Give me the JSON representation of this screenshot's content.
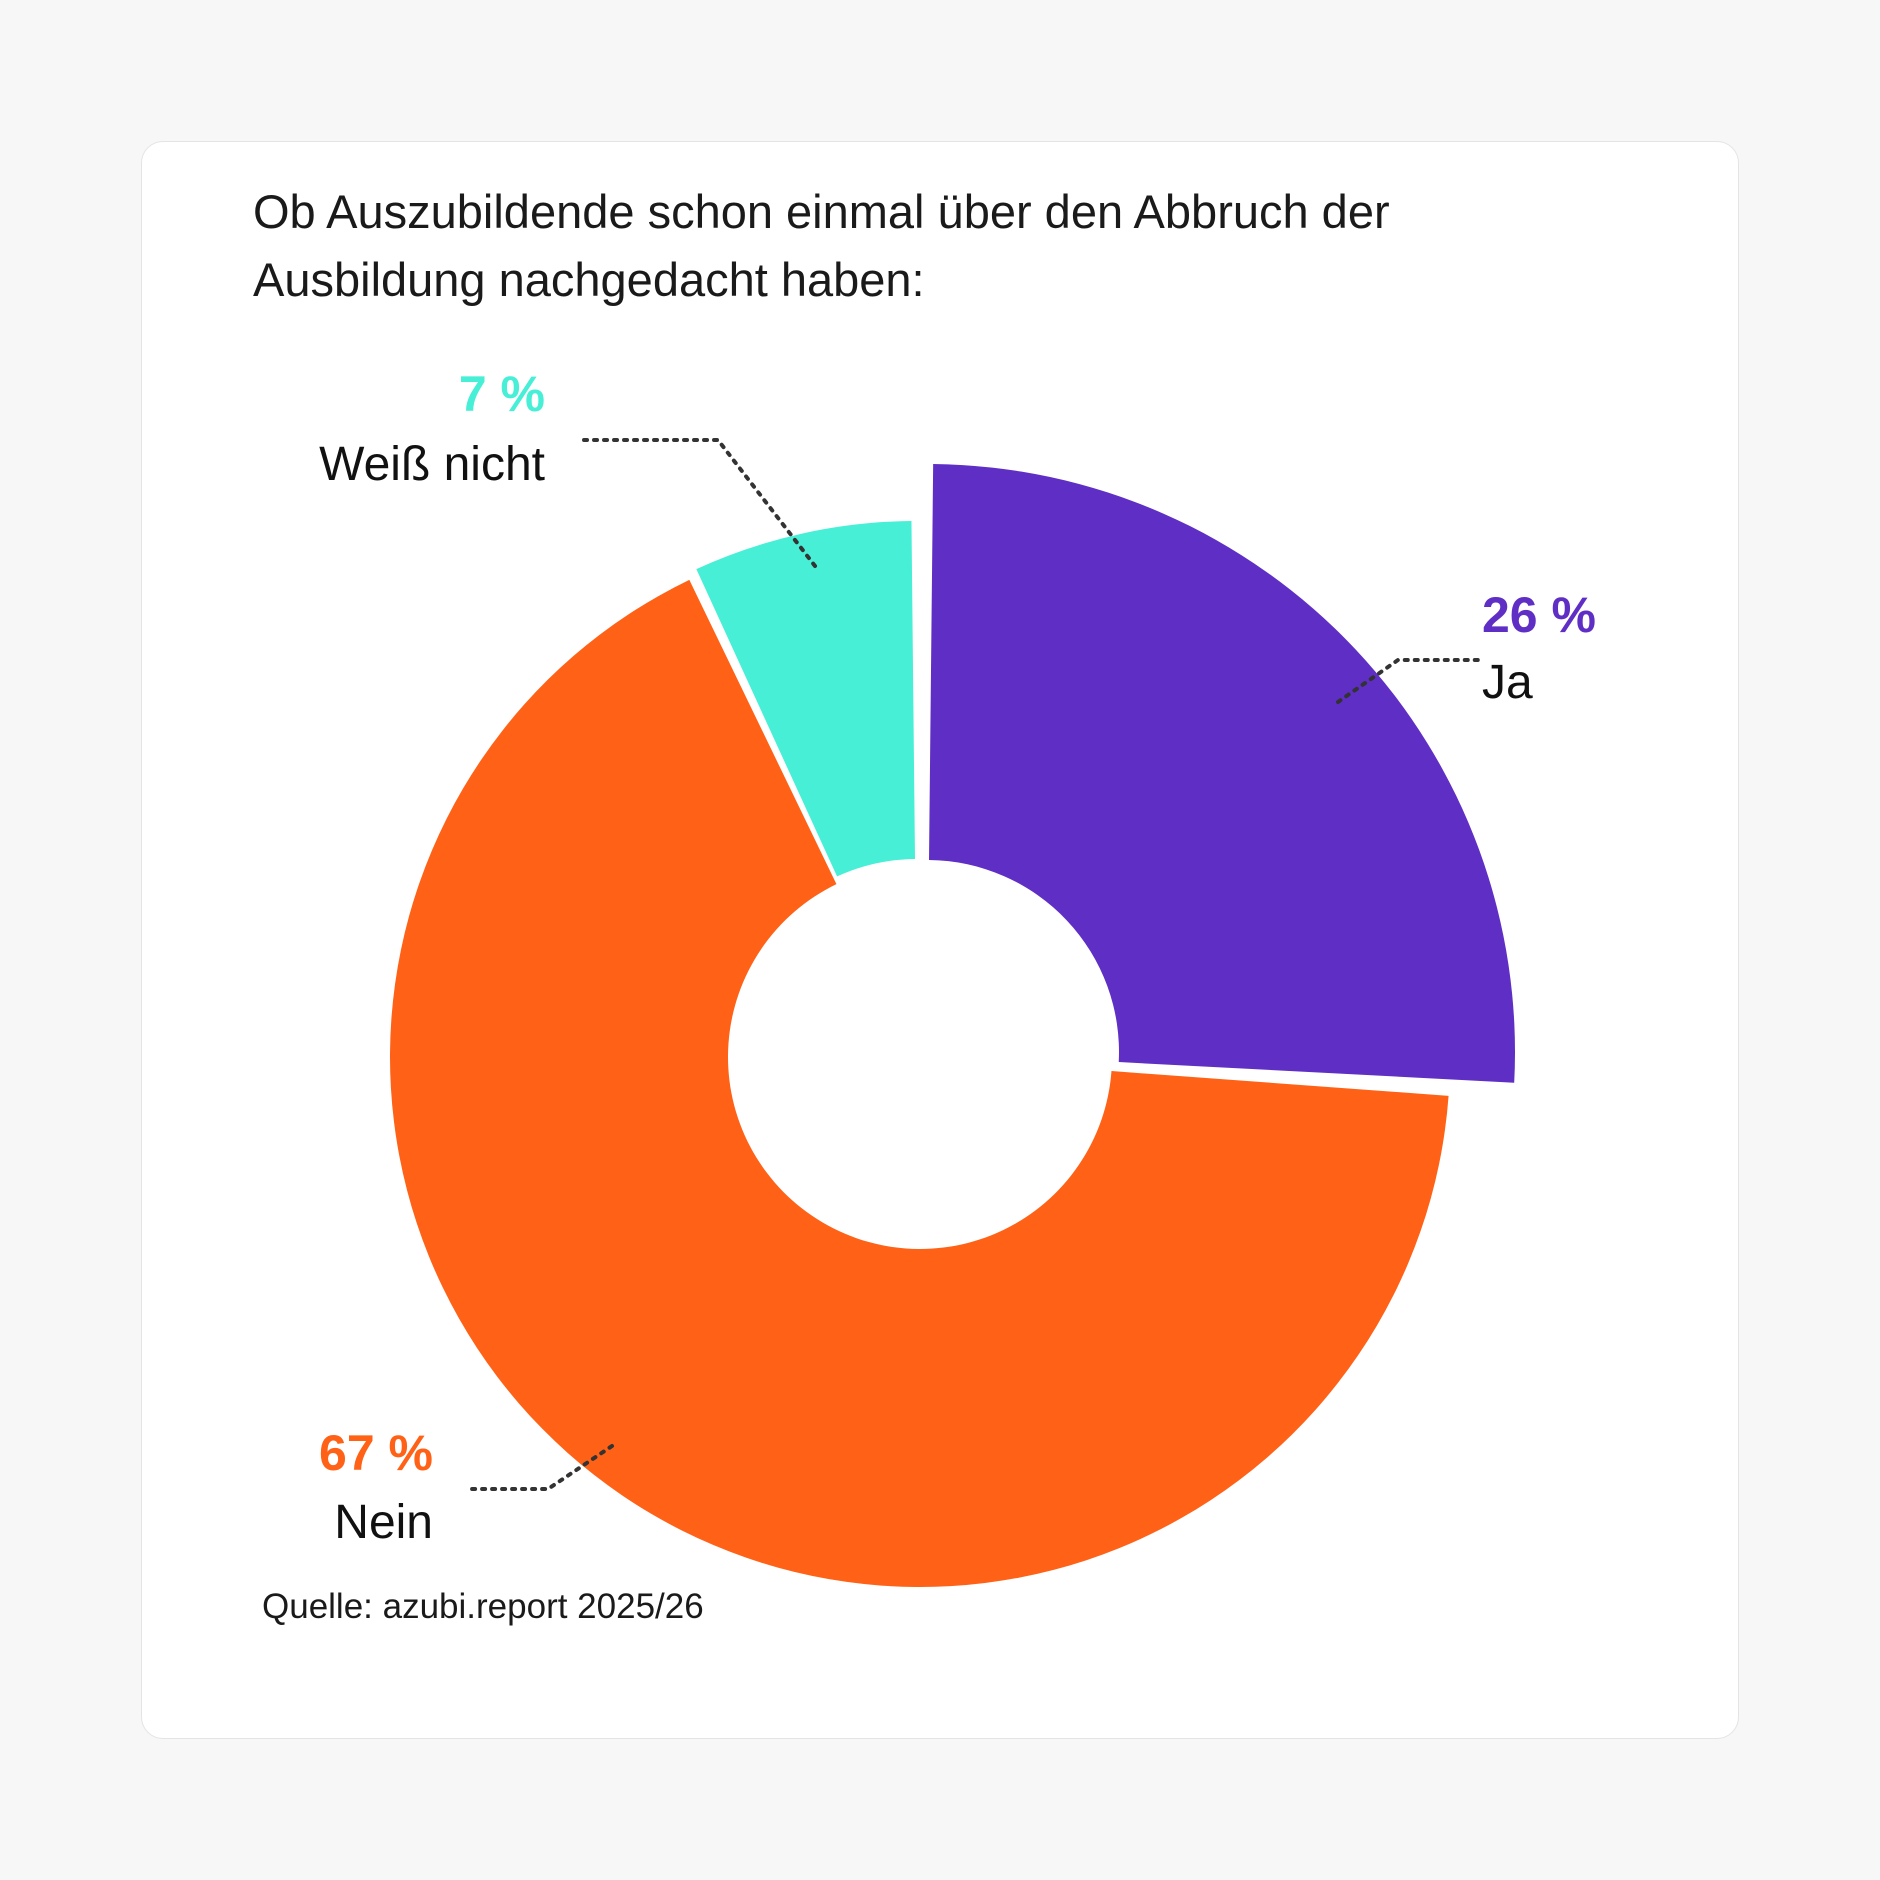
{
  "chart_data": {
    "type": "pie",
    "variant": "donut",
    "title": "Ob Auszubildende schon einmal über den Abbruch der Ausbildung nachgedacht haben:",
    "slices": [
      {
        "label": "Ja",
        "value": 26,
        "display": "26 %",
        "color": "#5f2ec4"
      },
      {
        "label": "Nein",
        "value": 67,
        "display": "67 %",
        "color": "#ff6116"
      },
      {
        "label": "Weiß nicht",
        "value": 7,
        "display": "7 %",
        "color": "#46efd5"
      }
    ],
    "source": "Quelle: azubi.report 2025/26"
  }
}
